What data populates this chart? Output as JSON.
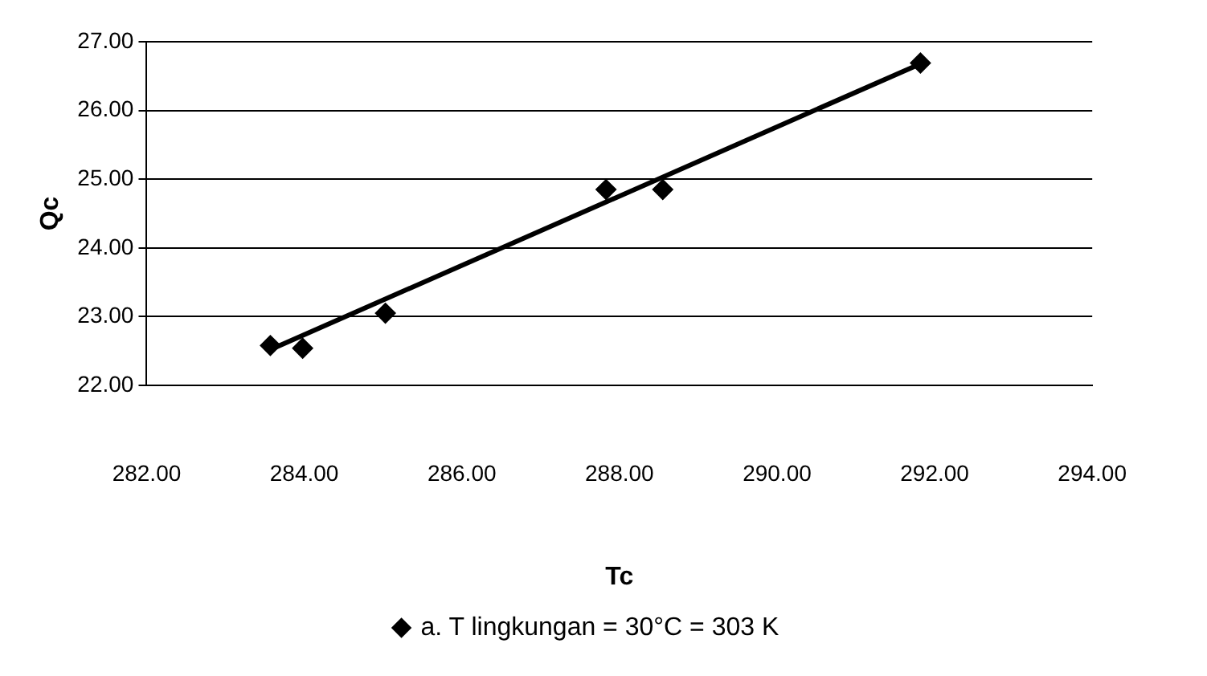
{
  "chart_data": {
    "type": "scatter",
    "xlabel": "Tc",
    "ylabel": "Qc",
    "x": [
      283.57,
      283.98,
      285.03,
      287.83,
      288.55,
      291.82
    ],
    "series": [
      {
        "name": "a. T lingkungan = 30°C = 303 K",
        "color": "#000000",
        "values": [
          22.58,
          22.54,
          23.05,
          24.85,
          24.85,
          26.69
        ],
        "marker": "diamond"
      },
      {
        "type": "line",
        "color": "#000000",
        "x": [
          283.57,
          291.82
        ],
        "values": [
          22.52,
          26.68
        ],
        "marker": "none"
      }
    ],
    "xlim": [
      282,
      294
    ],
    "ylim": [
      22,
      27
    ],
    "xticks": [
      {
        "value": 282,
        "label": "282.00"
      },
      {
        "value": 284,
        "label": "284.00"
      },
      {
        "value": 286,
        "label": "286.00"
      },
      {
        "value": 288,
        "label": "288.00"
      },
      {
        "value": 290,
        "label": "290.00"
      },
      {
        "value": 292,
        "label": "292.00"
      },
      {
        "value": 294,
        "label": "294.00"
      }
    ],
    "yticks": [
      {
        "value": 22,
        "label": "22.00"
      },
      {
        "value": 23,
        "label": "23.00"
      },
      {
        "value": 24,
        "label": "24.00"
      },
      {
        "value": 25,
        "label": "25.00"
      },
      {
        "value": 26,
        "label": "26.00"
      },
      {
        "value": 27,
        "label": "27.00"
      }
    ],
    "grid": "y",
    "legend": "bottom"
  }
}
